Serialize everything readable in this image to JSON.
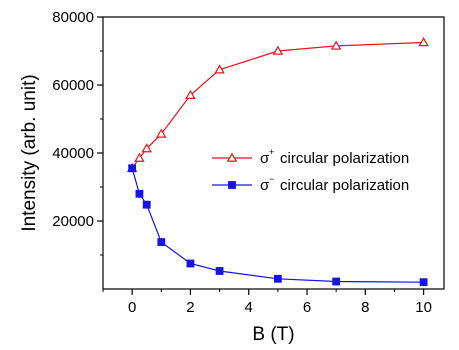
{
  "chart_data": {
    "type": "line",
    "xlabel": "B (T)",
    "ylabel": "Intensity (arb. unit)",
    "xlim": [
      -1,
      10.7
    ],
    "ylim": [
      0,
      80000
    ],
    "xticks": [
      0,
      2,
      4,
      6,
      8,
      10
    ],
    "xtick_labels": [
      "0",
      "2",
      "4",
      "6",
      "8",
      "10"
    ],
    "yticks": [
      20000,
      40000,
      60000,
      80000
    ],
    "ytick_labels": [
      "20000",
      "40000",
      "60000",
      "80000"
    ],
    "grid": false,
    "legend_position": "center-right",
    "series": [
      {
        "name_symbol": "σ",
        "name_superscript": "+",
        "name_text": "circular polarization",
        "color": "#e8141e",
        "marker": "open-triangle",
        "x": [
          0,
          0.25,
          0.5,
          1,
          2,
          3,
          5,
          7,
          10
        ],
        "y": [
          35500,
          38500,
          41300,
          45600,
          57000,
          64500,
          70000,
          71500,
          72500
        ]
      },
      {
        "name_symbol": "σ",
        "name_superscript": "−",
        "name_text": "circular polarization",
        "color": "#1414e6",
        "marker": "filled-square",
        "x": [
          0,
          0.25,
          0.5,
          1,
          2,
          3,
          5,
          7,
          10
        ],
        "y": [
          35500,
          28000,
          24800,
          13800,
          7500,
          5300,
          3000,
          2200,
          2000
        ]
      }
    ]
  }
}
